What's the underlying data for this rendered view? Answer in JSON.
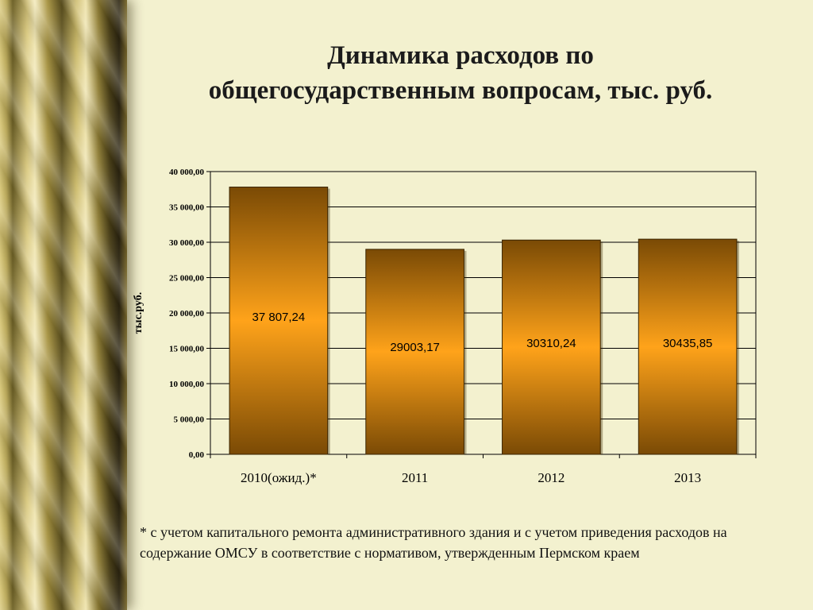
{
  "title": {
    "line1": "Динамика расходов по",
    "line2": "общегосударственным вопросам, тыс. руб."
  },
  "chart_data": {
    "type": "bar",
    "categories": [
      "2010(ожид.)*",
      "2011",
      "2012",
      "2013"
    ],
    "values": [
      37807.24,
      29003.17,
      30310.24,
      30435.85
    ],
    "data_labels": [
      "37 807,24",
      "29003,17",
      "30310,24",
      "30435,85"
    ],
    "ylabel": "тыс.руб.",
    "ylim": [
      0,
      40000
    ],
    "yticks": [
      "0,00",
      "5 000,00",
      "10 000,00",
      "15 000,00",
      "20 000,00",
      "25 000,00",
      "30 000,00",
      "35 000,00",
      "40 000,00"
    ],
    "grid": true,
    "legend": "none",
    "colors": {
      "bar_dark": "#7a4a05",
      "bar_light": "#ffa31a",
      "grid": "#000000"
    }
  },
  "footnote": "* с учетом капитального ремонта административного здания и с учетом приведения расходов на содержание ОМСУ в соответствие с нормативом, утвержденным Пермском краем"
}
